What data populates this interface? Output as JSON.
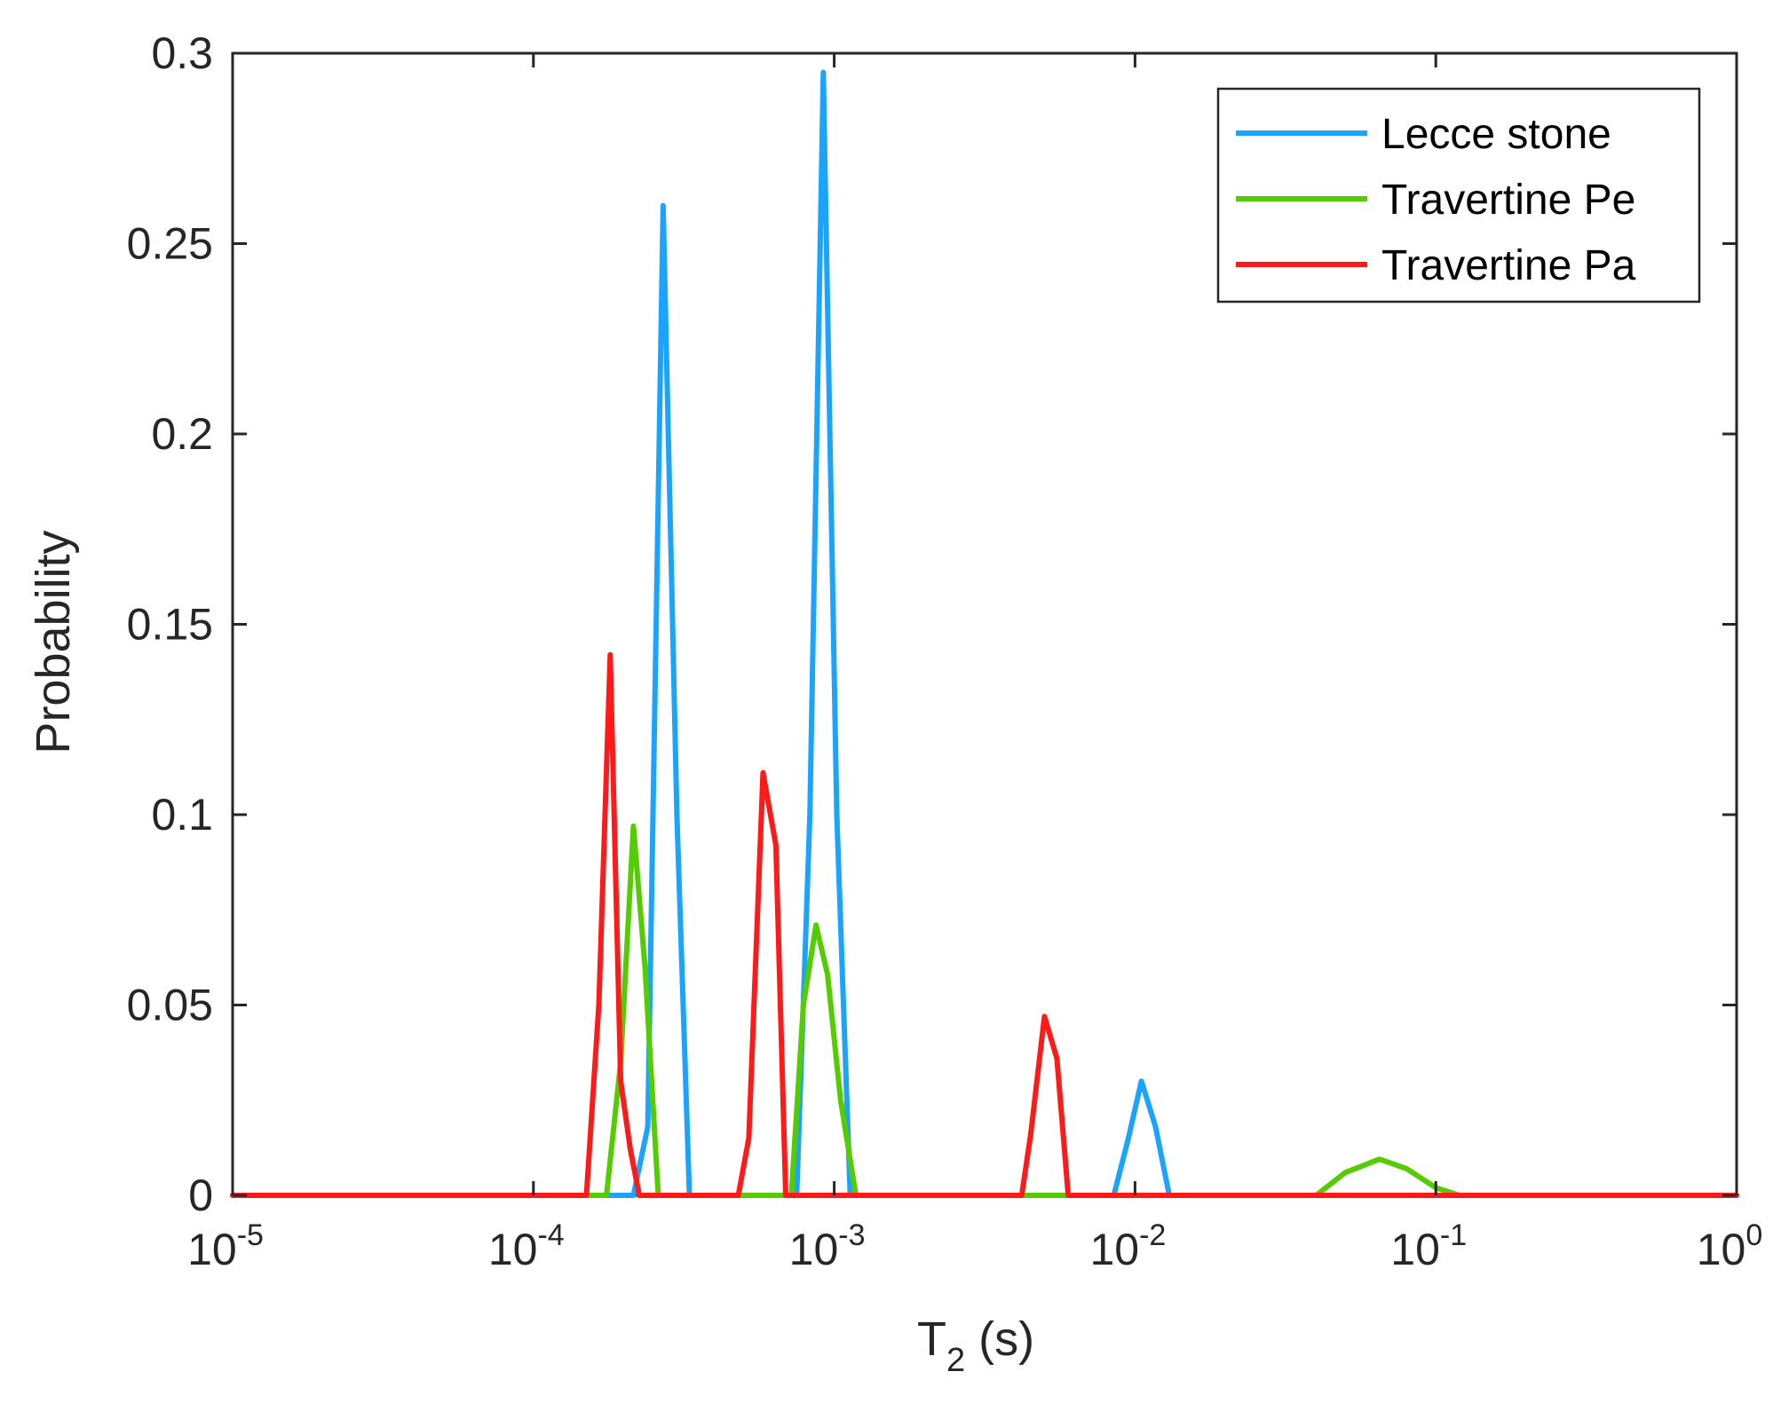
{
  "chart_data": {
    "type": "line",
    "xscale": "log",
    "xlim": [
      1e-05,
      1
    ],
    "ylim": [
      0,
      0.3
    ],
    "xlabel": {
      "base": "T",
      "sub": "2",
      "suffix": " (s)"
    },
    "ylabel": "Probability",
    "grid": false,
    "legend_position": "top-right",
    "xticks": [
      {
        "value": 1e-05,
        "base": "10",
        "exp": "-5"
      },
      {
        "value": 0.0001,
        "base": "10",
        "exp": "-4"
      },
      {
        "value": 0.001,
        "base": "10",
        "exp": "-3"
      },
      {
        "value": 0.01,
        "base": "10",
        "exp": "-2"
      },
      {
        "value": 0.1,
        "base": "10",
        "exp": "-1"
      },
      {
        "value": 1,
        "base": "10",
        "exp": "0"
      }
    ],
    "yticks": [
      {
        "value": 0,
        "label": "0"
      },
      {
        "value": 0.05,
        "label": "0.05"
      },
      {
        "value": 0.1,
        "label": "0.1"
      },
      {
        "value": 0.15,
        "label": "0.15"
      },
      {
        "value": 0.2,
        "label": "0.2"
      },
      {
        "value": 0.25,
        "label": "0.25"
      },
      {
        "value": 0.3,
        "label": "0.3"
      }
    ],
    "series": [
      {
        "name": "Lecce stone",
        "color": "#1aa3ff",
        "x": [
          1e-05,
          0.000215,
          0.00024,
          0.00027,
          0.0003,
          0.00033,
          0.00075,
          0.00083,
          0.00092,
          0.00102,
          0.00113,
          0.0085,
          0.0095,
          0.0105,
          0.0117,
          0.013,
          1
        ],
        "y": [
          0,
          0,
          0.018,
          0.26,
          0.1,
          0,
          0,
          0.1,
          0.295,
          0.1,
          0,
          0,
          0.015,
          0.03,
          0.018,
          0,
          0
        ]
      },
      {
        "name": "Travertine Pe",
        "color": "#55cc00",
        "x": [
          1e-05,
          0.000175,
          0.000195,
          0.000215,
          0.000235,
          0.00026,
          0.00072,
          0.00079,
          0.00087,
          0.00095,
          0.00105,
          0.00118,
          0.04,
          0.05,
          0.065,
          0.08,
          0.1,
          0.12,
          1
        ],
        "y": [
          0,
          0,
          0.035,
          0.097,
          0.06,
          0,
          0,
          0.05,
          0.071,
          0.058,
          0.025,
          0,
          0,
          0.006,
          0.0095,
          0.007,
          0.002,
          0,
          0
        ]
      },
      {
        "name": "Travertine Pa",
        "color": "#ff1a1a",
        "x": [
          1e-05,
          0.00015,
          0.000165,
          0.00018,
          0.000195,
          0.00021,
          0.000225,
          0.00048,
          0.00052,
          0.00058,
          0.00064,
          0.00069,
          0.0042,
          0.0045,
          0.005,
          0.0055,
          0.006,
          1
        ],
        "y": [
          0,
          0,
          0.05,
          0.142,
          0.03,
          0.012,
          0,
          0,
          0.015,
          0.111,
          0.092,
          0,
          0,
          0.016,
          0.047,
          0.036,
          0,
          0
        ]
      }
    ]
  }
}
